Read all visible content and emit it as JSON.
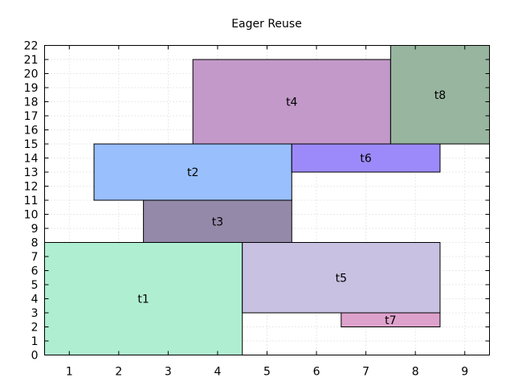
{
  "chart_data": {
    "type": "bar",
    "subtype": "rectangle-packing",
    "title": "Eager Reuse",
    "xlabel": "",
    "ylabel": "",
    "xlim": [
      0,
      9
    ],
    "ylim": [
      0,
      22
    ],
    "x_ticks": [
      "1",
      "2",
      "3",
      "4",
      "5",
      "6",
      "7",
      "8",
      "9"
    ],
    "y_ticks": [
      "0",
      "1",
      "2",
      "3",
      "4",
      "5",
      "6",
      "7",
      "8",
      "9",
      "10",
      "11",
      "12",
      "13",
      "14",
      "15",
      "16",
      "17",
      "18",
      "19",
      "20",
      "21",
      "22"
    ],
    "grid": true,
    "legend": "none",
    "rects": [
      {
        "label": "t1",
        "x0": 0.0,
        "x1": 4.0,
        "y0": 0,
        "y1": 8,
        "color": "#b0eed2"
      },
      {
        "label": "t2",
        "x0": 1.0,
        "x1": 5.0,
        "y0": 11,
        "y1": 15,
        "color": "#99bffc"
      },
      {
        "label": "t3",
        "x0": 2.0,
        "x1": 5.0,
        "y0": 8,
        "y1": 11,
        "color": "#9589a9"
      },
      {
        "label": "t4",
        "x0": 3.0,
        "x1": 7.0,
        "y0": 15,
        "y1": 21,
        "color": "#c299c9"
      },
      {
        "label": "t5",
        "x0": 4.0,
        "x1": 8.0,
        "y0": 3,
        "y1": 8,
        "color": "#c8c1e1"
      },
      {
        "label": "t6",
        "x0": 5.0,
        "x1": 8.0,
        "y0": 13,
        "y1": 15,
        "color": "#9d8afa"
      },
      {
        "label": "t7",
        "x0": 6.0,
        "x1": 8.0,
        "y0": 2,
        "y1": 3,
        "color": "#dda2cb"
      },
      {
        "label": "t8",
        "x0": 7.0,
        "x1": 9.0,
        "y0": 15,
        "y1": 22,
        "color": "#98b59f"
      }
    ]
  }
}
